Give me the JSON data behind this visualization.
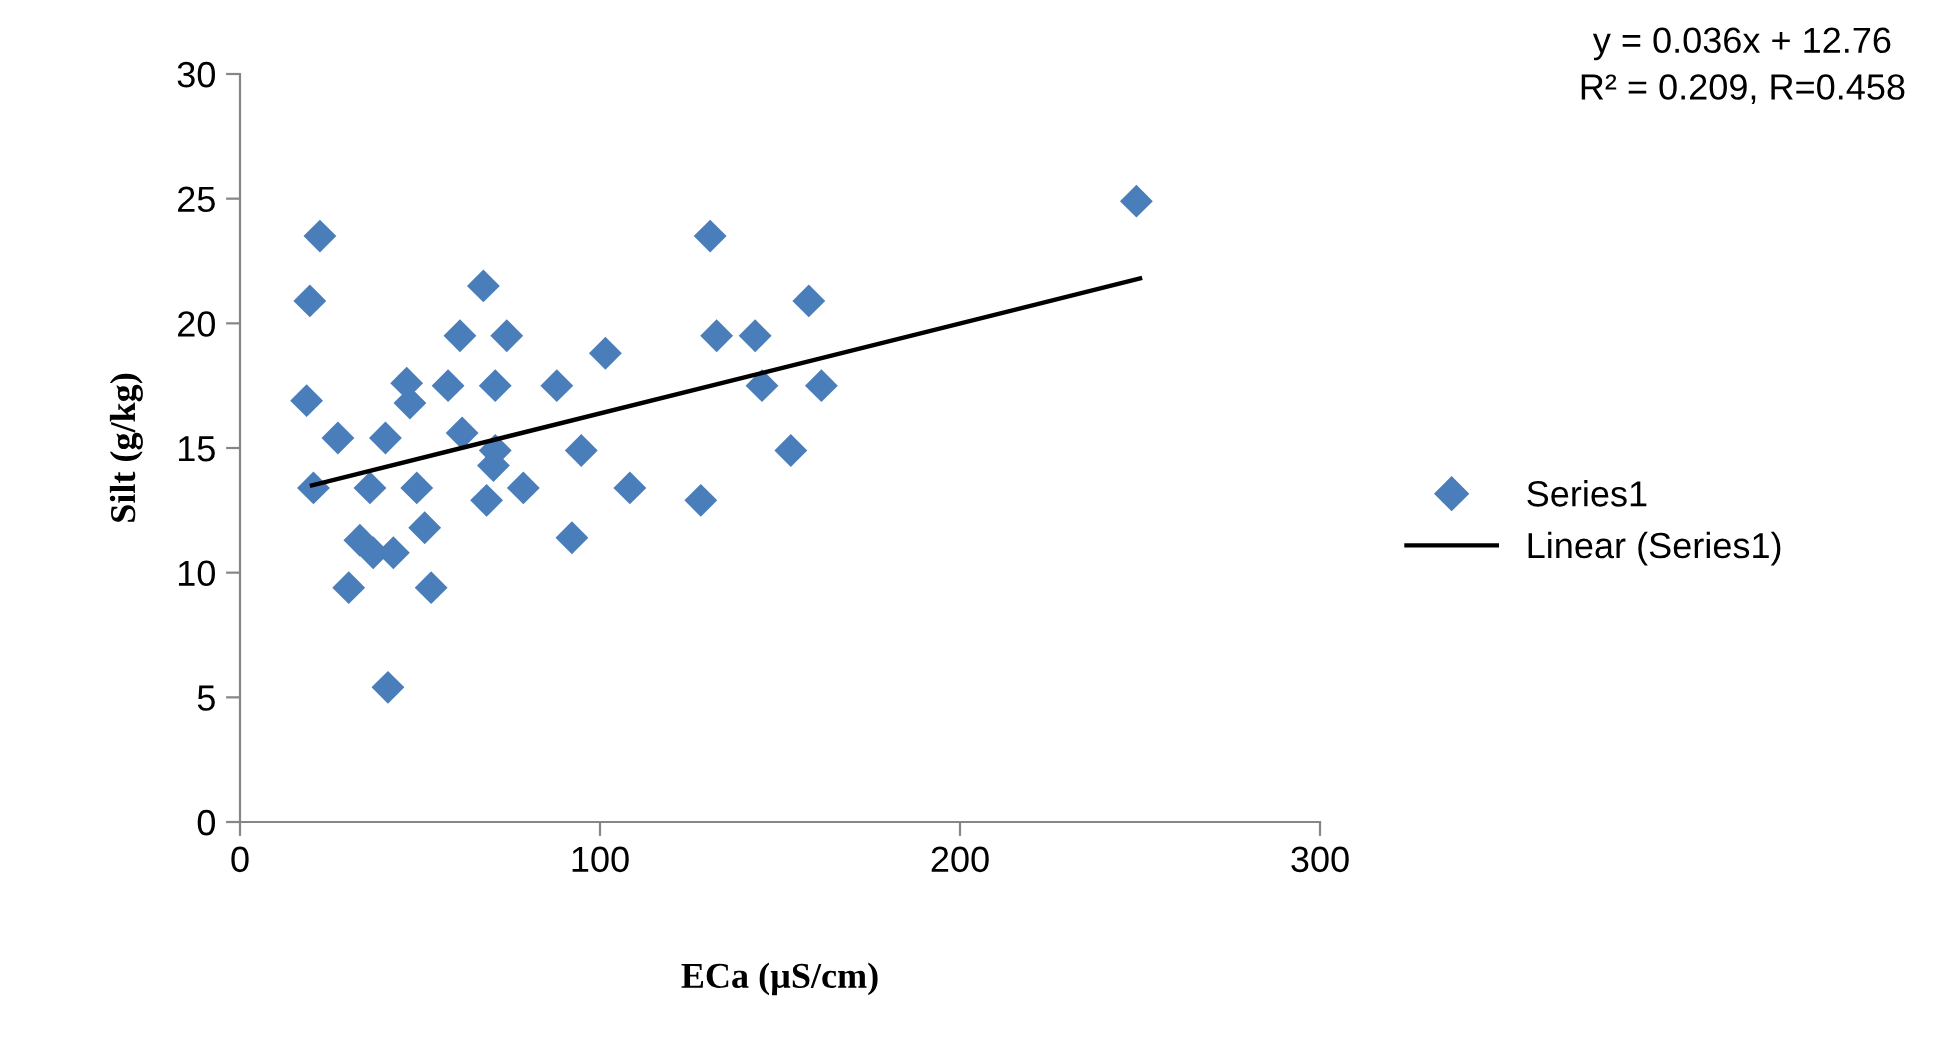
{
  "chart_data": {
    "type": "scatter",
    "xlabel": "ECa (µS/cm)",
    "ylabel": "Silt (g/kg)",
    "xlim": [
      0,
      300
    ],
    "xticks": [
      0,
      100,
      200,
      300
    ],
    "ylim": [
      0,
      30
    ],
    "yticks": [
      0,
      5,
      10,
      15,
      20,
      25,
      30
    ],
    "grid": false,
    "legend": "right",
    "marker": "diamond",
    "annotations": [
      "y = 0.036x + 12.76\nR² = 0.209, R=0.458"
    ],
    "series": [
      {
        "name": "Series1",
        "color": "#4a7ebb",
        "x": [
          22.2,
          19.4,
          67.6,
          61.1,
          74.1,
          101.5,
          130.6,
          132.4,
          143.1,
          158,
          145,
          161.5,
          153,
          128,
          18.5,
          46.3,
          47.2,
          57.8,
          70.9,
          88,
          27.2,
          40.4,
          61.7,
          70.9,
          94.8,
          20.4,
          36.1,
          49.1,
          68.5,
          78.7,
          108.3,
          51.3,
          33.3,
          42.6,
          92.2,
          30.2,
          53.1,
          41.1,
          37,
          70.4,
          249
        ],
        "values": [
          23.5,
          20.9,
          21.5,
          19.5,
          19.5,
          18.8,
          23.5,
          19.5,
          19.5,
          20.9,
          17.5,
          17.5,
          14.9,
          12.9,
          16.9,
          17.6,
          16.8,
          17.5,
          17.5,
          17.5,
          15.4,
          15.4,
          15.6,
          14.9,
          14.9,
          13.4,
          13.4,
          13.4,
          12.9,
          13.4,
          13.4,
          11.8,
          11.3,
          10.8,
          11.4,
          9.4,
          9.4,
          5.4,
          10.8,
          14.3,
          24.9
        ]
      },
      {
        "name": "Linear (Series1)",
        "color": "#000000",
        "type": "line",
        "marker": "none",
        "x": [
          20,
          250
        ],
        "values": [
          13.5,
          21.8
        ]
      }
    ]
  }
}
